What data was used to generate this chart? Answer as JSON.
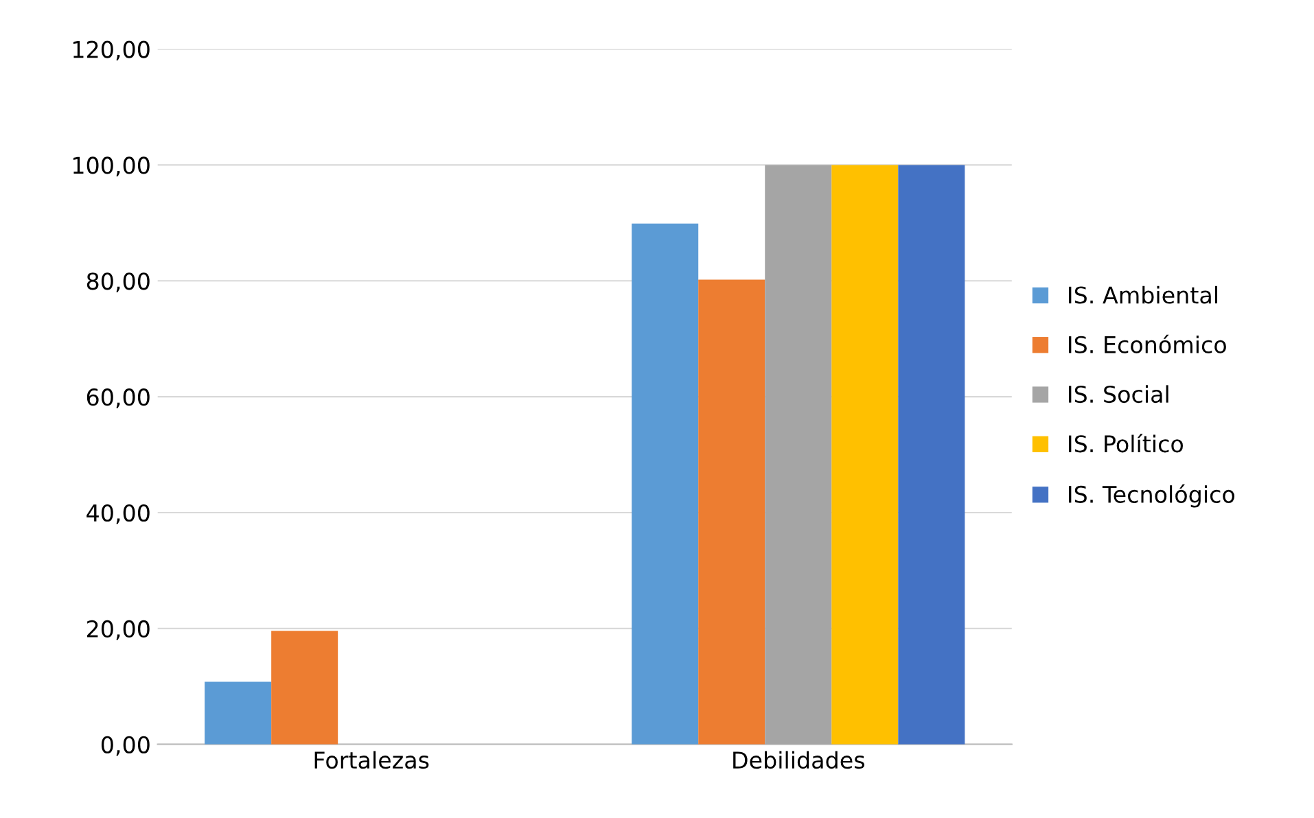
{
  "chart_data": {
    "type": "bar",
    "categories": [
      "Fortalezas",
      "Debilidades"
    ],
    "series": [
      {
        "name": "IS. Ambiental",
        "color": "#5b9bd5",
        "values": [
          10.8,
          89.9
        ]
      },
      {
        "name": "IS. Económico",
        "color": "#ed7d31",
        "values": [
          19.6,
          80.2
        ]
      },
      {
        "name": "IS. Social",
        "color": "#a5a5a5",
        "values": [
          0,
          100
        ]
      },
      {
        "name": "IS. Político",
        "color": "#ffc000",
        "values": [
          0,
          100
        ]
      },
      {
        "name": "IS. Tecnológico",
        "color": "#4472c4",
        "values": [
          0,
          100
        ]
      }
    ],
    "ylim": [
      0,
      120
    ],
    "yticks": [
      {
        "value": 0,
        "label": "0,00"
      },
      {
        "value": 20,
        "label": "20,00"
      },
      {
        "value": 40,
        "label": "40,00"
      },
      {
        "value": 60,
        "label": "60,00"
      },
      {
        "value": 80,
        "label": "80,00"
      },
      {
        "value": 100,
        "label": "100,00"
      },
      {
        "value": 120,
        "label": "120,00"
      }
    ],
    "grid": "y",
    "legend": "right"
  }
}
